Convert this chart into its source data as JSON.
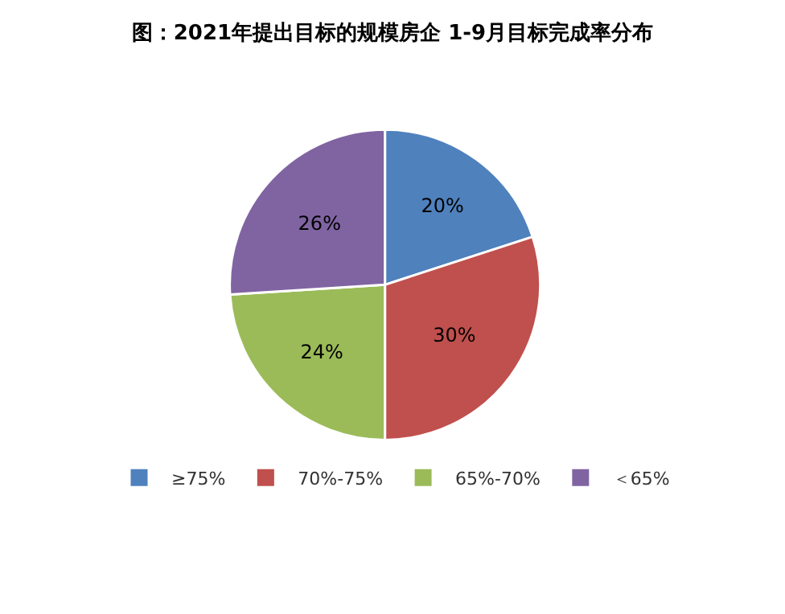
{
  "chart_data": {
    "type": "pie",
    "title": "图：2021年提出目标的规模房企 1-9月目标完成率分布",
    "categories": [
      "≥75%",
      "70%-75%",
      "65%-70%",
      "＜65%"
    ],
    "values": [
      20,
      30,
      24,
      26
    ],
    "colors": [
      "#4f81bd",
      "#c0504d",
      "#9bbb59",
      "#8064a2"
    ],
    "value_labels": [
      "20%",
      "30%",
      "24%",
      "26%"
    ],
    "legend": "bottom"
  }
}
